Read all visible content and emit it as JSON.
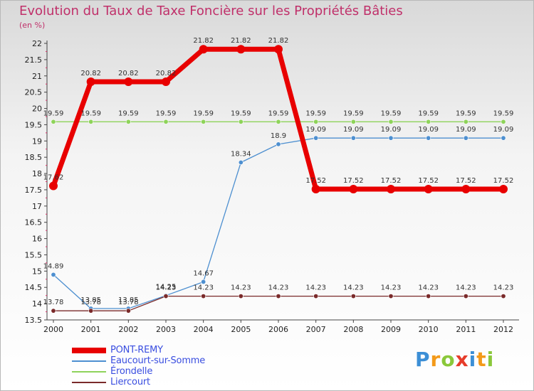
{
  "header": {
    "title": "Evolution du Taux de Taxe Foncière sur les Propriétés Bâties",
    "unit": "(en %)"
  },
  "logo": {
    "letters": [
      "P",
      "r",
      "o",
      "x",
      "i",
      "t",
      "i"
    ],
    "colors": [
      "#3c8fd6",
      "#f39a1a",
      "#8ac83a",
      "#e63c2a",
      "#3c8fd6",
      "#f39a1a",
      "#8ac83a"
    ]
  },
  "chart_data": {
    "type": "line",
    "title": "Evolution du Taux de Taxe Foncière sur les Propriétés Bâties",
    "ylabel": "(en %)",
    "xlabel": "",
    "x": [
      "2000",
      "2001",
      "2002",
      "2003",
      "2004",
      "2005",
      "2006",
      "2007",
      "2008",
      "2009",
      "2010",
      "2011",
      "2012"
    ],
    "ylim": [
      13.5,
      22
    ],
    "yticks": [
      "13.5",
      "14",
      "14.5",
      "15",
      "15.5",
      "16",
      "16.5",
      "17",
      "17.5",
      "18",
      "18.5",
      "19",
      "19.5",
      "20",
      "20.5",
      "21",
      "21.5",
      "22"
    ],
    "grid": false,
    "legend_position": "bottom-left",
    "series": [
      {
        "name": "PONT-REMY",
        "color": "#e80000",
        "thick": true,
        "values": [
          17.62,
          20.82,
          20.82,
          20.82,
          21.82,
          21.82,
          21.82,
          17.52,
          17.52,
          17.52,
          17.52,
          17.52,
          17.52
        ],
        "labels": [
          "17.62",
          "20.82",
          "20.82",
          "20.82",
          "21.82",
          "21.82",
          "21.82",
          "17.52",
          "17.52",
          "17.52",
          "17.52",
          "17.52",
          "17.52"
        ]
      },
      {
        "name": "Eaucourt-sur-Somme",
        "color": "#4d8fd0",
        "thick": false,
        "values": [
          14.89,
          13.85,
          13.85,
          14.25,
          14.67,
          18.34,
          18.9,
          19.09,
          19.09,
          19.09,
          19.09,
          19.09,
          19.09
        ],
        "labels": [
          "14.89",
          "13.85",
          "13.85",
          "14.25",
          "14.67",
          "18.34",
          "18.9",
          "19.09",
          "19.09",
          "19.09",
          "19.09",
          "19.09",
          "19.09"
        ]
      },
      {
        "name": "Érondelle",
        "color": "#8ed35a",
        "thick": false,
        "values": [
          19.59,
          19.59,
          19.59,
          19.59,
          19.59,
          19.59,
          19.59,
          19.59,
          19.59,
          19.59,
          19.59,
          19.59,
          19.59
        ],
        "labels": [
          "19.59",
          "19.59",
          "19.59",
          "19.59",
          "19.59",
          "19.59",
          "19.59",
          "19.59",
          "19.59",
          "19.59",
          "19.59",
          "19.59",
          "19.59"
        ]
      },
      {
        "name": "Liercourt",
        "color": "#7a2a2a",
        "thick": false,
        "values": [
          13.78,
          13.78,
          13.78,
          14.23,
          14.23,
          14.23,
          14.23,
          14.23,
          14.23,
          14.23,
          14.23,
          14.23,
          14.23
        ],
        "labels": [
          "13.78",
          "13.78",
          "13.78",
          "14.23",
          "14.23",
          "14.23",
          "14.23",
          "14.23",
          "14.23",
          "14.23",
          "14.23",
          "14.23",
          "14.23"
        ]
      }
    ]
  }
}
